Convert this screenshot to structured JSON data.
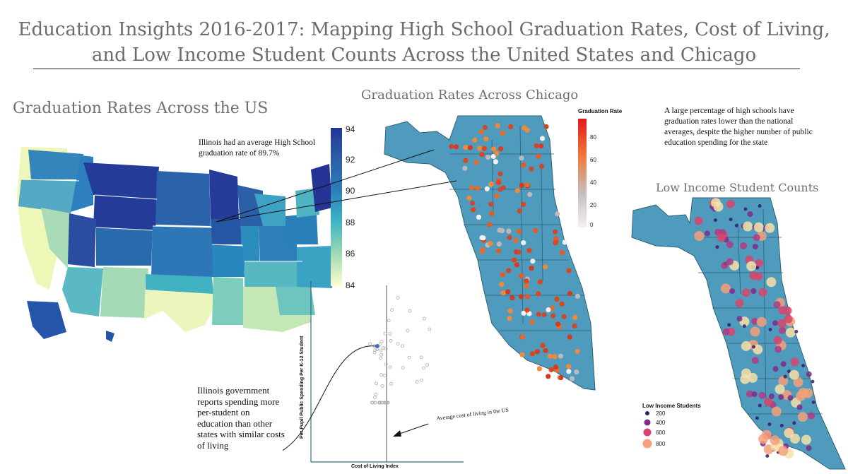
{
  "title": {
    "line1": "Education Insights 2016-2017: Mapping High School Graduation Rates, Cost of Living,",
    "line2": "and Low Income Student Counts Across the United States and Chicago"
  },
  "us_map": {
    "heading": "Graduation Rates Across the US",
    "annotation": "Illinois had an average High School graduation rate of 89.7%",
    "colorbar": {
      "min": 84,
      "max": 94,
      "ticks": [
        "94",
        "92",
        "90",
        "88",
        "86",
        "84"
      ],
      "low_color": "#f2f8c4",
      "high_color": "#253494"
    }
  },
  "chicago_grad": {
    "heading": "Graduation Rates Across Chicago",
    "legend_title": "Graduation Rate",
    "ticks": [
      "80",
      "60",
      "40",
      "20",
      "0"
    ],
    "map_color": "#4f9bbd",
    "low_color": "#f0eef0",
    "high_color": "#e31a1c"
  },
  "chicago_note": "A large percentage of  high schools have graduation rates lower than the national averages, despite the higher number of public education spending for the state",
  "low_income": {
    "heading": "Low Income Student Counts",
    "legend_title": "Low Income Students",
    "legend": [
      {
        "label": "200",
        "color": "#3b1a6e"
      },
      {
        "label": "400",
        "color": "#7e2c8a"
      },
      {
        "label": "600",
        "color": "#d8456c"
      },
      {
        "label": "800",
        "color": "#f5a07a"
      }
    ]
  },
  "scatter": {
    "xlabel": "Cost of Living Index",
    "ylabel": "Per Pupil Public Spending Per K-12 Student",
    "avg_line_label": "Average cost of living in the US",
    "illinois_note": "Illinois government reports spending more per-student on education than other states with similar costs of living"
  }
}
